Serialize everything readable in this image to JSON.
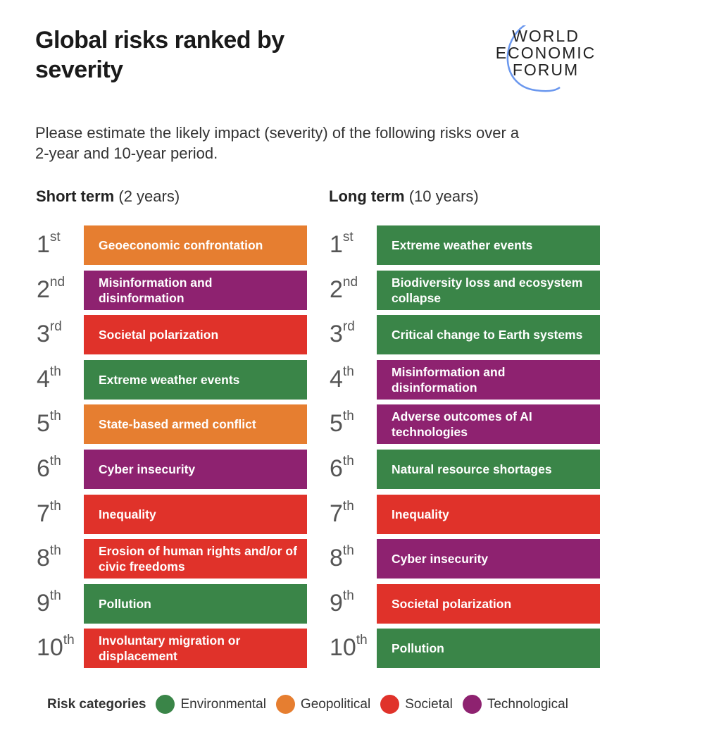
{
  "title": "Global risks ranked by severity",
  "logo": {
    "lines": [
      "WORLD",
      "ECONOMIC",
      "FORUM"
    ]
  },
  "subtitle": "Please estimate the likely impact (severity) of the following risks over a 2-year and 10-year period.",
  "colors": {
    "Environmental": "#3a8548",
    "Geopolitical": "#e67e30",
    "Societal": "#e0322a",
    "Technological": "#8e2270"
  },
  "short_term": {
    "label": "Short term",
    "period": "(2 years)",
    "items": [
      {
        "rank": "1",
        "suffix": "st",
        "risk": "Geoeconomic confrontation",
        "category": "Geopolitical"
      },
      {
        "rank": "2",
        "suffix": "nd",
        "risk": "Misinformation and disinformation",
        "category": "Technological"
      },
      {
        "rank": "3",
        "suffix": "rd",
        "risk": "Societal polarization",
        "category": "Societal"
      },
      {
        "rank": "4",
        "suffix": "th",
        "risk": "Extreme weather events",
        "category": "Environmental"
      },
      {
        "rank": "5",
        "suffix": "th",
        "risk": "State-based armed conflict",
        "category": "Geopolitical"
      },
      {
        "rank": "6",
        "suffix": "th",
        "risk": "Cyber insecurity",
        "category": "Technological"
      },
      {
        "rank": "7",
        "suffix": "th",
        "risk": "Inequality",
        "category": "Societal"
      },
      {
        "rank": "8",
        "suffix": "th",
        "risk": "Erosion of human rights and/or of civic freedoms",
        "category": "Societal"
      },
      {
        "rank": "9",
        "suffix": "th",
        "risk": "Pollution",
        "category": "Environmental"
      },
      {
        "rank": "10",
        "suffix": "th",
        "risk": "Involuntary migration or displacement",
        "category": "Societal"
      }
    ]
  },
  "long_term": {
    "label": "Long term",
    "period": "(10 years)",
    "items": [
      {
        "rank": "1",
        "suffix": "st",
        "risk": "Extreme weather events",
        "category": "Environmental"
      },
      {
        "rank": "2",
        "suffix": "nd",
        "risk": "Biodiversity loss and ecosystem collapse",
        "category": "Environmental"
      },
      {
        "rank": "3",
        "suffix": "rd",
        "risk": "Critical change to Earth systems",
        "category": "Environmental"
      },
      {
        "rank": "4",
        "suffix": "th",
        "risk": "Misinformation and disinformation",
        "category": "Technological"
      },
      {
        "rank": "5",
        "suffix": "th",
        "risk": "Adverse outcomes of AI technologies",
        "category": "Technological"
      },
      {
        "rank": "6",
        "suffix": "th",
        "risk": "Natural resource shortages",
        "category": "Environmental"
      },
      {
        "rank": "7",
        "suffix": "th",
        "risk": "Inequality",
        "category": "Societal"
      },
      {
        "rank": "8",
        "suffix": "th",
        "risk": "Cyber insecurity",
        "category": "Technological"
      },
      {
        "rank": "9",
        "suffix": "th",
        "risk": "Societal polarization",
        "category": "Societal"
      },
      {
        "rank": "10",
        "suffix": "th",
        "risk": "Pollution",
        "category": "Environmental"
      }
    ]
  },
  "legend": {
    "title": "Risk categories",
    "items": [
      "Environmental",
      "Geopolitical",
      "Societal",
      "Technological"
    ]
  }
}
